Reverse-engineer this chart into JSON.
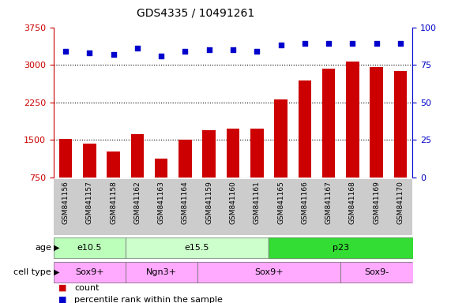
{
  "title": "GDS4335 / 10491261",
  "samples": [
    "GSM841156",
    "GSM841157",
    "GSM841158",
    "GSM841162",
    "GSM841163",
    "GSM841164",
    "GSM841159",
    "GSM841160",
    "GSM841161",
    "GSM841165",
    "GSM841166",
    "GSM841167",
    "GSM841168",
    "GSM841169",
    "GSM841170"
  ],
  "counts": [
    1510,
    1420,
    1270,
    1620,
    1120,
    1500,
    1690,
    1720,
    1730,
    2300,
    2680,
    2930,
    3060,
    2960,
    2870
  ],
  "percentile_ranks": [
    84,
    83,
    82,
    86,
    81,
    84,
    85,
    85,
    84,
    88,
    89,
    89,
    89,
    89,
    89
  ],
  "age_groups": [
    {
      "label": "e10.5",
      "start": 0,
      "end": 3,
      "color": "#bbffbb"
    },
    {
      "label": "e15.5",
      "start": 3,
      "end": 9,
      "color": "#ccffcc"
    },
    {
      "label": "p23",
      "start": 9,
      "end": 15,
      "color": "#33dd33"
    }
  ],
  "cell_type_groups": [
    {
      "label": "Sox9+",
      "start": 0,
      "end": 3
    },
    {
      "label": "Ngn3+",
      "start": 3,
      "end": 6
    },
    {
      "label": "Sox9+",
      "start": 6,
      "end": 12
    },
    {
      "label": "Sox9-",
      "start": 12,
      "end": 15
    }
  ],
  "ylim_left": [
    750,
    3750
  ],
  "yticks_left": [
    750,
    1500,
    2250,
    3000,
    3750
  ],
  "ylim_right": [
    0,
    100
  ],
  "yticks_right": [
    0,
    25,
    50,
    75,
    100
  ],
  "bar_color": "#cc0000",
  "dot_color": "#0000cc",
  "bar_width": 0.55,
  "cell_color": "#ffaaff",
  "grid_color": "black",
  "bg_label_color": "#cccccc",
  "left_axis_color": "#cc0000",
  "right_axis_color": "#0000cc"
}
